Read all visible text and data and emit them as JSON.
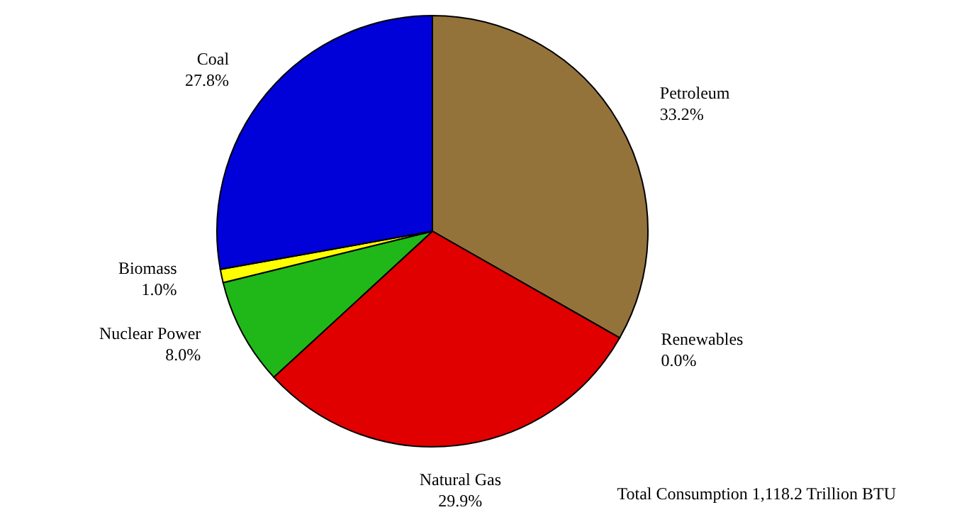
{
  "chart_data": {
    "type": "pie",
    "categories": [
      "Petroleum",
      "Renewables",
      "Natural Gas",
      "Nuclear Power",
      "Biomass",
      "Coal"
    ],
    "values": [
      33.2,
      0.0,
      29.9,
      8.0,
      1.0,
      27.8
    ],
    "value_labels": [
      "33.2%",
      "0.0%",
      "29.9%",
      "8.0%",
      "1.0%",
      "27.8%"
    ],
    "colors": [
      "#94733b",
      null,
      "#e00000",
      "#20b818",
      "#ffff00",
      "#0000d8"
    ],
    "annotations": [
      "Total Consumption 1,118.2 Trillion BTU"
    ],
    "legend": false
  }
}
